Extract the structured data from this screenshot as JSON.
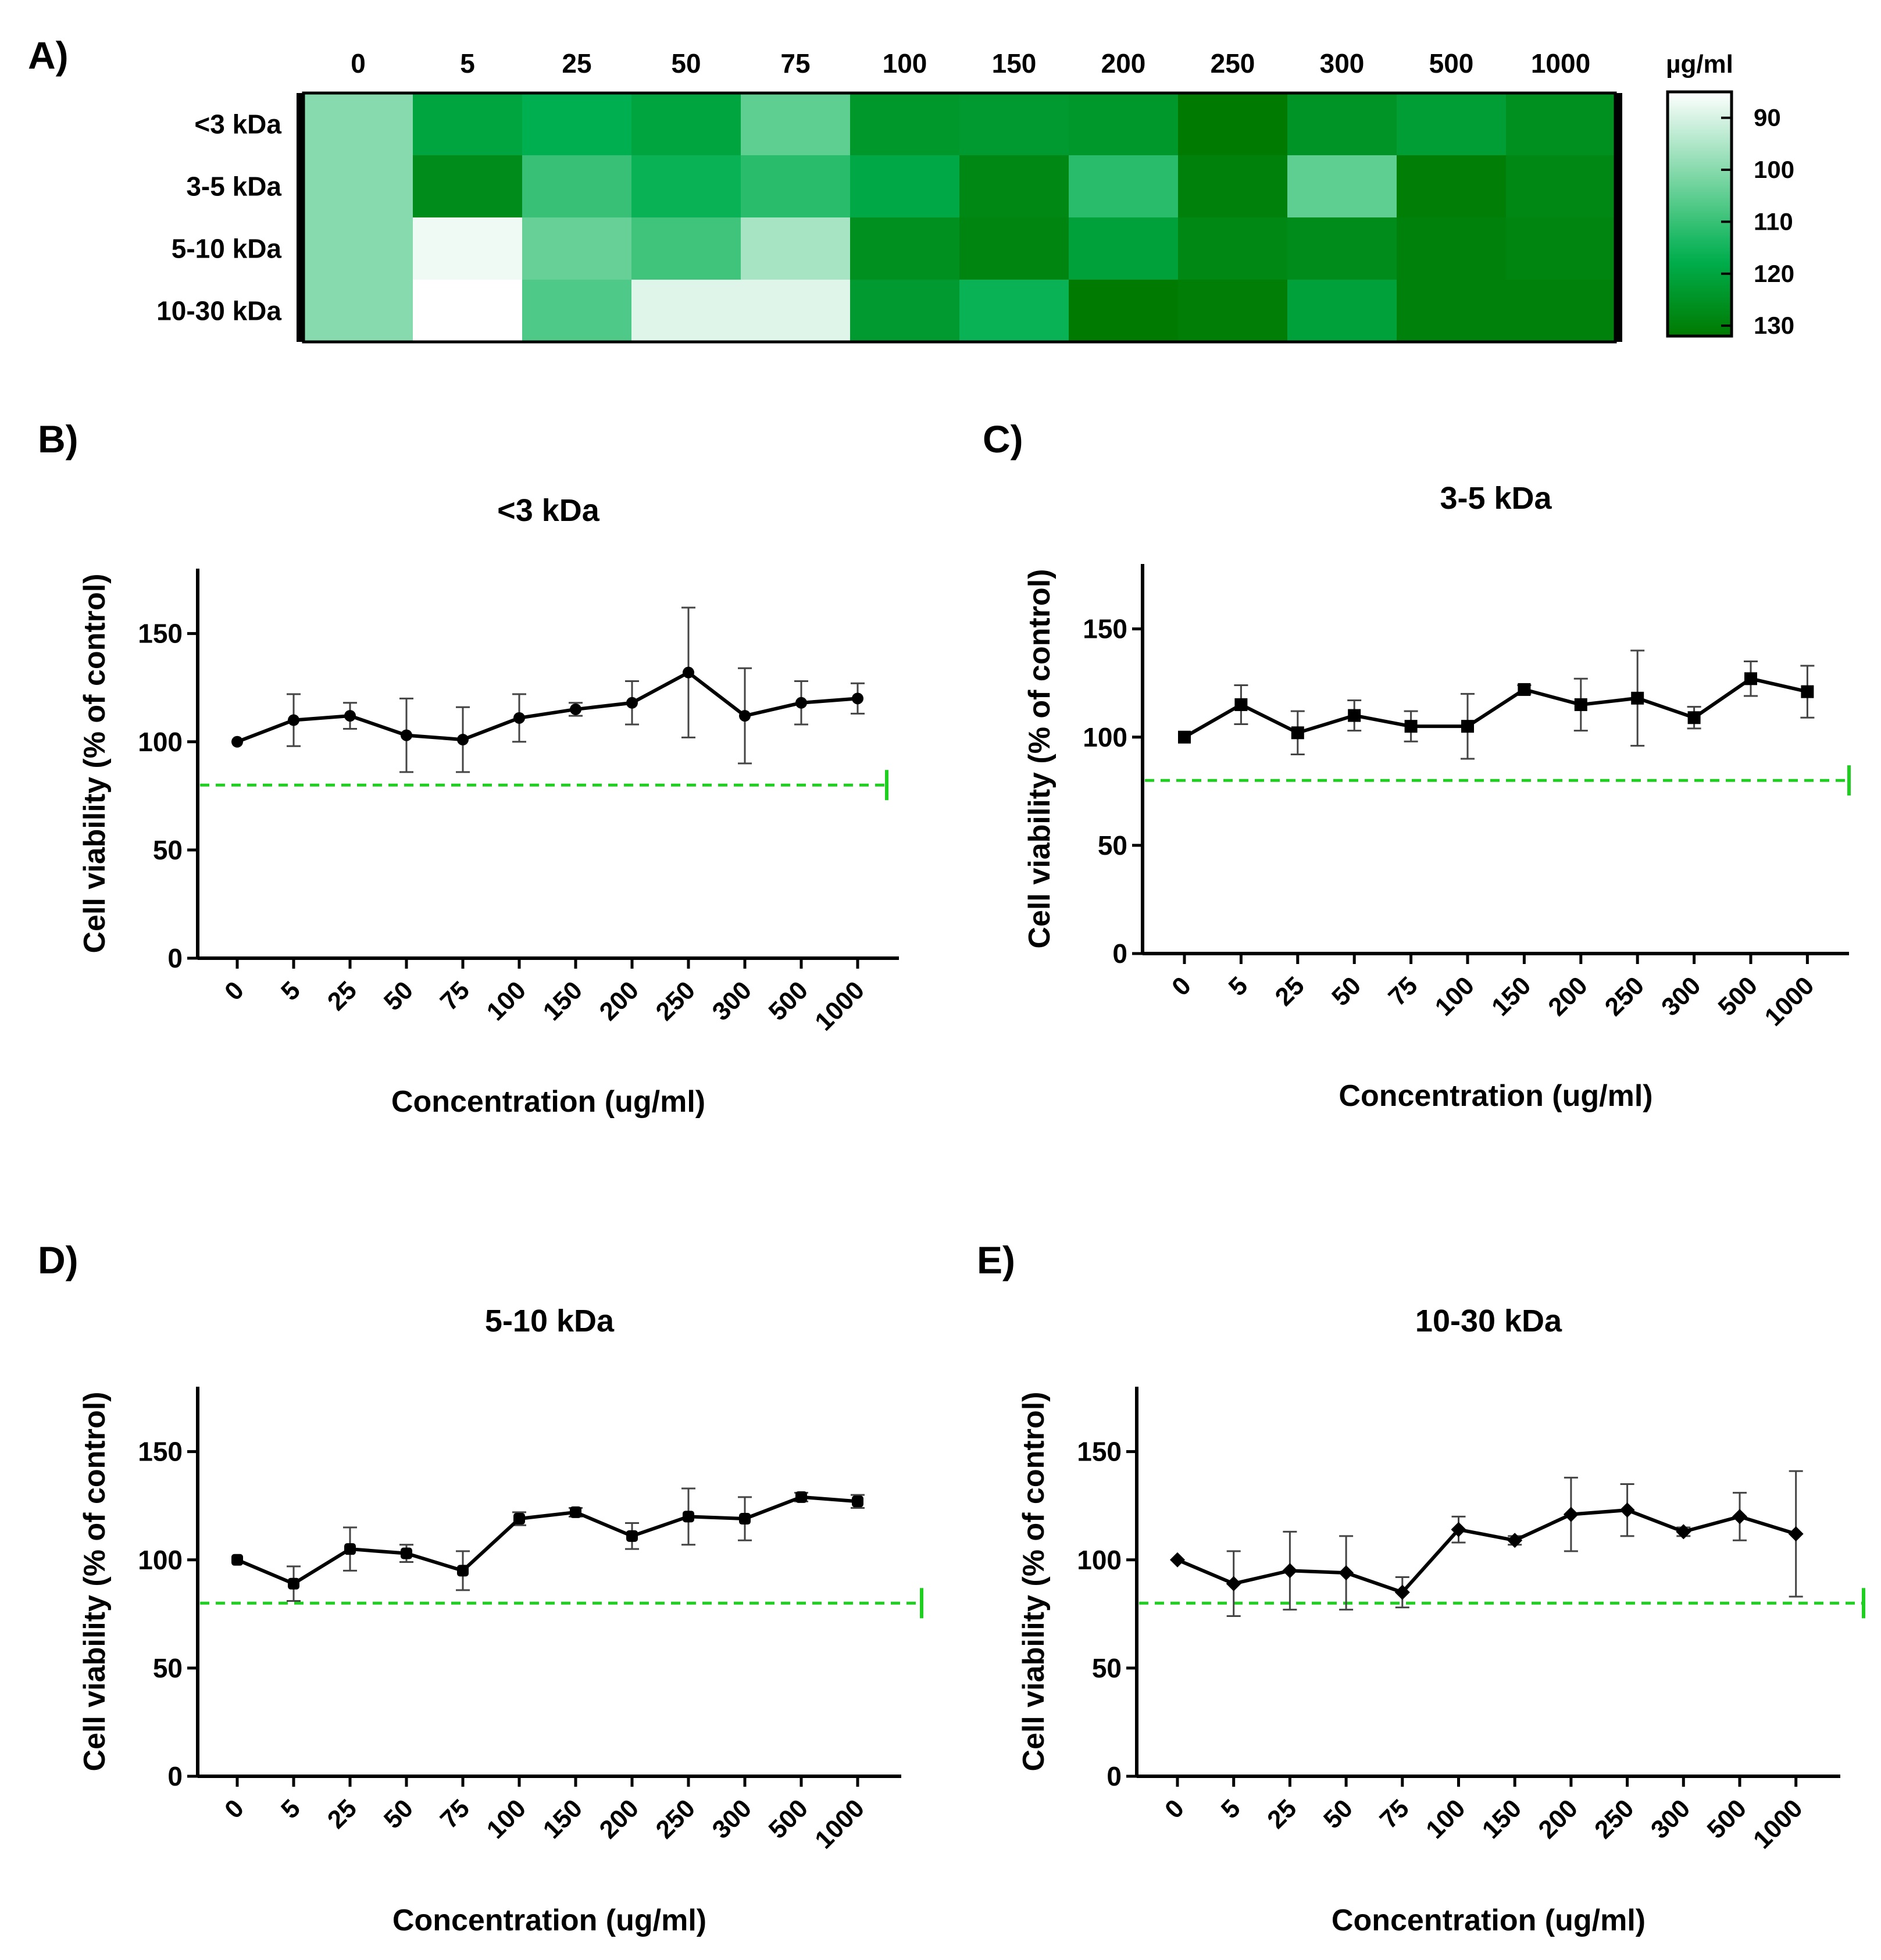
{
  "chart_data": [
    {
      "panel": "A)",
      "type": "heatmap",
      "x_categories": [
        "0",
        "5",
        "25",
        "50",
        "75",
        "100",
        "150",
        "200",
        "250",
        "300",
        "500",
        "1000"
      ],
      "y_categories": [
        "<3 kDa",
        "3-5 kDa",
        "5-10 kDa",
        "10-30 kDa"
      ],
      "values": [
        [
          100,
          120,
          117,
          120,
          105,
          124,
          123,
          124,
          132,
          125,
          122,
          126
        ],
        [
          100,
          127,
          110,
          116,
          112,
          119,
          128,
          112,
          130,
          105,
          131,
          128
        ],
        [
          100,
          87,
          104,
          109,
          96,
          126,
          129,
          121,
          128,
          127,
          130,
          129
        ],
        [
          100,
          85,
          107,
          89,
          89,
          123,
          116,
          132,
          131,
          121,
          130,
          130
        ]
      ],
      "unit_label": "µg/ml",
      "colorbar": {
        "min": 85,
        "max": 132,
        "ticks": [
          90,
          100,
          110,
          120,
          130
        ]
      }
    },
    {
      "panel": "B)",
      "type": "line",
      "title": "<3 kDa",
      "marker": "circle",
      "categories": [
        "0",
        "5",
        "25",
        "50",
        "75",
        "100",
        "150",
        "200",
        "250",
        "300",
        "500",
        "1000"
      ],
      "values": [
        100,
        110,
        112,
        103,
        101,
        111,
        115,
        118,
        132,
        112,
        118,
        120
      ],
      "errors": [
        0,
        12,
        6,
        17,
        15,
        11,
        3,
        10,
        30,
        22,
        10,
        7
      ],
      "xlabel": "Concentration (ug/ml)",
      "ylabel": "Cell viability (% of control)",
      "ylim": [
        0,
        180
      ],
      "yticks": [
        0,
        50,
        100,
        150
      ],
      "threshold": 80
    },
    {
      "panel": "C)",
      "type": "line",
      "title": "3-5 kDa",
      "marker": "square",
      "categories": [
        "0",
        "5",
        "25",
        "50",
        "75",
        "100",
        "150",
        "200",
        "250",
        "300",
        "500",
        "1000"
      ],
      "values": [
        100,
        115,
        102,
        110,
        105,
        105,
        122,
        115,
        118,
        109,
        127,
        121
      ],
      "errors": [
        0,
        9,
        10,
        7,
        7,
        15,
        2,
        12,
        22,
        5,
        8,
        12
      ],
      "xlabel": "Concentration (ug/ml)",
      "ylabel": "Cell viability (% of control)",
      "ylim": [
        0,
        180
      ],
      "yticks": [
        0,
        50,
        100,
        150
      ],
      "threshold": 80
    },
    {
      "panel": "D)",
      "type": "line",
      "title": "5-10 kDa",
      "marker": "plus",
      "categories": [
        "0",
        "5",
        "25",
        "50",
        "75",
        "100",
        "150",
        "200",
        "250",
        "300",
        "500",
        "1000"
      ],
      "values": [
        100,
        89,
        105,
        103,
        95,
        119,
        122,
        111,
        120,
        119,
        129,
        127
      ],
      "errors": [
        0,
        8,
        10,
        4,
        9,
        3,
        2,
        6,
        13,
        10,
        2,
        3
      ],
      "xlabel": "Concentration (ug/ml)",
      "ylabel": "Cell viability (% of control)",
      "ylim": [
        0,
        180
      ],
      "yticks": [
        0,
        50,
        100,
        150
      ],
      "threshold": 80
    },
    {
      "panel": "E)",
      "type": "line",
      "title": "10-30 kDa",
      "marker": "diamond",
      "categories": [
        "0",
        "5",
        "25",
        "50",
        "75",
        "100",
        "150",
        "200",
        "250",
        "300",
        "500",
        "1000"
      ],
      "values": [
        100,
        89,
        95,
        94,
        85,
        114,
        109,
        121,
        123,
        113,
        120,
        112
      ],
      "errors": [
        0,
        15,
        18,
        17,
        7,
        6,
        2,
        17,
        12,
        2,
        11,
        29
      ],
      "xlabel": "Concentration (ug/ml)",
      "ylabel": "Cell viability (% of control)",
      "ylim": [
        0,
        180
      ],
      "yticks": [
        0,
        50,
        100,
        150
      ],
      "threshold": 80
    }
  ],
  "colors": {
    "threshold_line": "#1fcf1f",
    "line": "#000000",
    "heat_low": "#ffffff",
    "heat_mid": "#00b050",
    "heat_high": "#007a00"
  }
}
